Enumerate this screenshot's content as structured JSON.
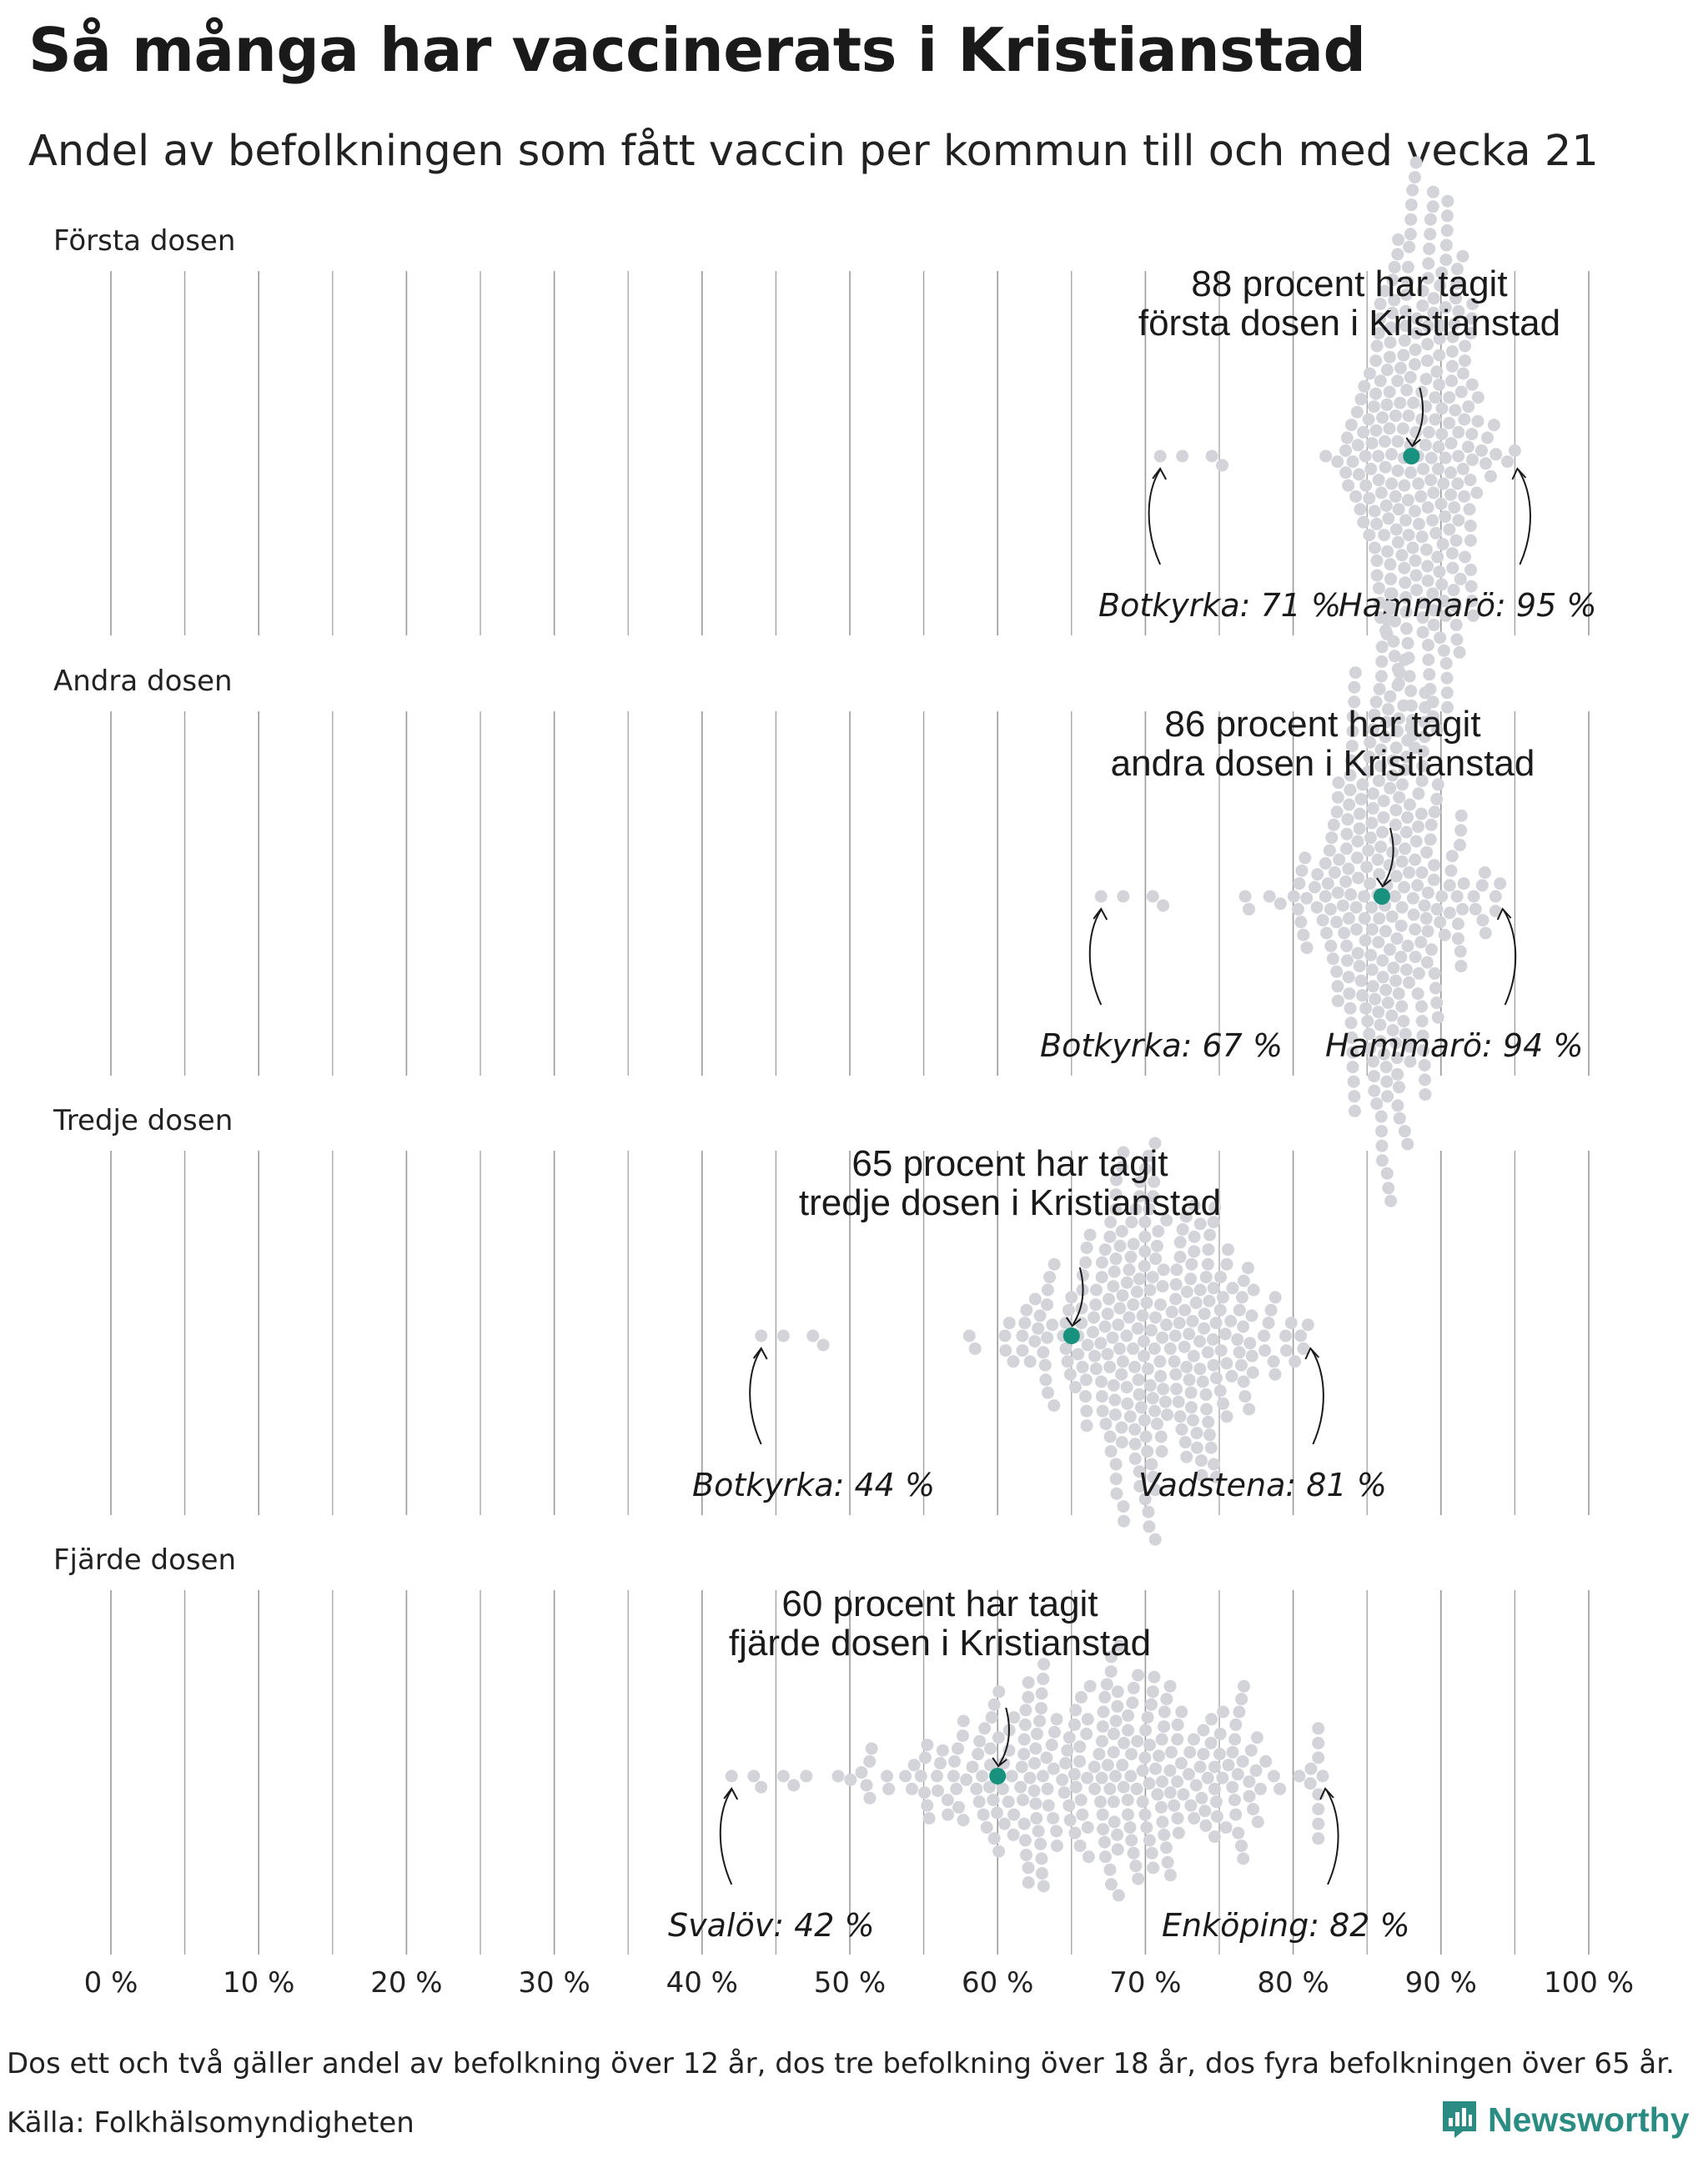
{
  "header": {
    "title": "Så många har vaccinerats i Kristianstad",
    "subtitle": "Andel av befolkningen som fått vaccin per kommun till och med vecka 21"
  },
  "footer": {
    "note": "Dos ett och två gäller andel av befolkning över 12 år, dos tre befolkning över 18 år, dos fyra befolkningen över 65 år.",
    "source": "Källa: Folkhälsomyndigheten",
    "brand": "Newsworthy"
  },
  "colors": {
    "highlight": "#18917f",
    "dots": "#d3d3da",
    "gridline": "#9a9a9a",
    "brand": "#2a8c82"
  },
  "chart_data": {
    "type": "beeswarm",
    "x_axis": {
      "ticks": [
        0,
        10,
        20,
        30,
        40,
        50,
        60,
        70,
        80,
        90,
        100
      ],
      "tick_labels": [
        "0 %",
        "10 %",
        "20 %",
        "30 %",
        "40 %",
        "50 %",
        "60 %",
        "70 %",
        "80 %",
        "90 %",
        "100 %"
      ],
      "minor_gridlines_every": 5,
      "range": [
        0,
        100
      ]
    },
    "panels": [
      {
        "label": "Första dosen",
        "highlight_value": 88,
        "annotation": [
          "88 procent har tagit",
          "första dosen i Kristianstad"
        ],
        "min": {
          "name": "Botkyrka",
          "value": 71,
          "label": "Botkyrka: 71 %"
        },
        "max": {
          "name": "Hammarö",
          "value": 95,
          "label": "Hammarö: 95 %"
        },
        "distribution_center": 88.5,
        "distribution_spread": 2.4
      },
      {
        "label": "Andra dosen",
        "highlight_value": 86,
        "annotation": [
          "86 procent har tagit",
          "andra dosen i Kristianstad"
        ],
        "min": {
          "name": "Botkyrka",
          "value": 67,
          "label": "Botkyrka: 67 %"
        },
        "max": {
          "name": "Hammarö",
          "value": 94,
          "label": "Hammarö: 94 %"
        },
        "distribution_center": 86.5,
        "distribution_spread": 2.8
      },
      {
        "label": "Tredje dosen",
        "highlight_value": 65,
        "annotation": [
          "65 procent har tagit",
          "tredje dosen i Kristianstad"
        ],
        "min": {
          "name": "Botkyrka",
          "value": 44,
          "label": "Botkyrka: 44 %"
        },
        "max": {
          "name": "Vadstena",
          "value": 81,
          "label": "Vadstena: 81 %"
        },
        "distribution_center": 70,
        "distribution_spread": 4.5
      },
      {
        "label": "Fjärde dosen",
        "highlight_value": 60,
        "annotation": [
          "60 procent har tagit",
          "fjärde dosen i Kristianstad"
        ],
        "min": {
          "name": "Svalöv",
          "value": 42,
          "label": "Svalöv: 42 %"
        },
        "max": {
          "name": "Enköping",
          "value": 82,
          "label": "Enköping: 82 %"
        },
        "distribution_center": 67,
        "distribution_spread": 7
      }
    ]
  }
}
